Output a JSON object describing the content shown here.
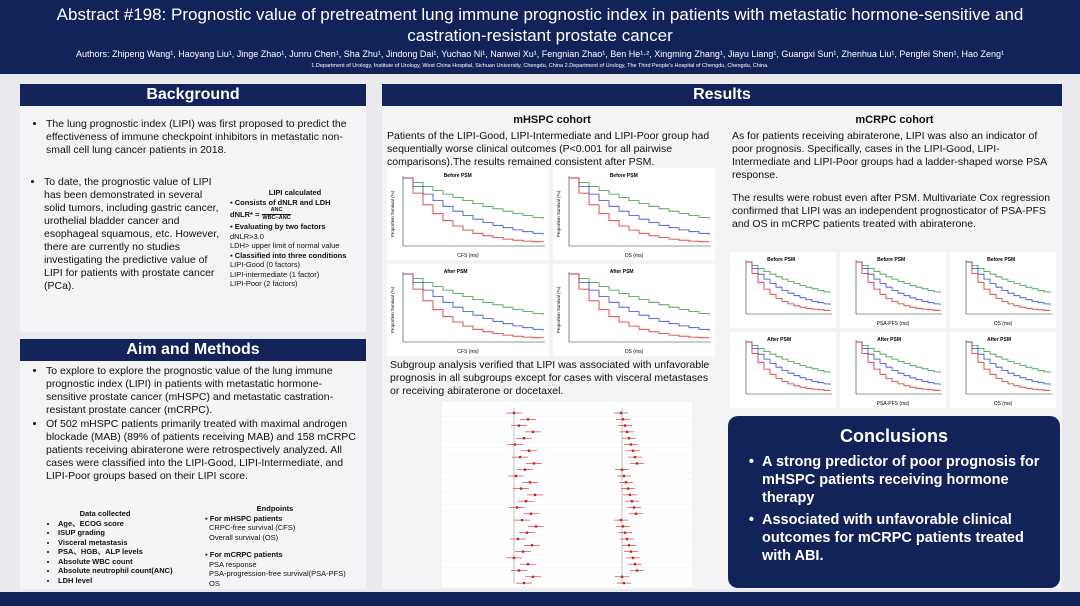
{
  "header": {
    "title": "Abstract #198: Prognostic value of pretreatment lung immune prognostic index in patients with metastatic hormone-sensitive and castration-resistant prostate cancer",
    "authors": "Authors: Zhipeng Wang¹, Haoyang Liu¹, Jinge Zhao¹, Junru Chen¹, Sha Zhu¹, Jindong Dai¹, Yuchao Ni¹, Nanwei Xu¹, Fengnian Zhao¹, Ben He¹·², Xingming Zhang¹, Jiayu Liang¹, Guangxi Sun¹, Zhenhua Liu¹, Pengfei Shen¹, Hao Zeng¹",
    "affiliations": "1.Department of Urology, Institute of Urology, West China Hospital, Sichuan University, Chengdu, China   2.Department of Urology, The Third People's Hospital of Chengdu, Chengdu, China."
  },
  "background": {
    "heading": "Background",
    "bullets": [
      "The lung prognostic index (LIPI) was first proposed to predict the effectiveness of immune checkpoint inhibitors in metastatic non-small cell lung cancer patients in 2018.",
      "To date, the prognostic value of LIPI has been demonstrated in several solid tumors, including gastric cancer, urothelial bladder cancer and esophageal squamous, etc. However, there are currently no studies investigating the predictive value of LIPI for patients with prostate cancer (PCa)."
    ],
    "lipi_box": {
      "title": "LIPI calculated",
      "item1": "Consists of dNLR and LDH",
      "formula_left": "dNLR* =",
      "formula_num": "ANC",
      "formula_den": "WBC−ANC",
      "item2": "Evaluating by two factors",
      "factor1": "dNLR>3.0",
      "factor2": "LDH> upper limit of normal value",
      "item3": "Classified into three conditions",
      "cond1": "LIPI-Good (0 factors)",
      "cond2": "LIPI-intermediate (1 factor)",
      "cond3": "LIPI-Poor (2 factors)"
    }
  },
  "aim_methods": {
    "heading": "Aim and Methods",
    "bullets": [
      "To explore to explore the prognostic value of the lung immune prognostic index (LIPI) in patients with metastatic hormone-sensitive prostate cancer (mHSPC) and metastatic castration-resistant prostate cancer (mCRPC).",
      "Of 502 mHSPC patients primarily treated with maximal androgen blockade (MAB) (89% of patients receiving MAB) and 158 mCRPC patients receiving abiraterone were retrospectively analyzed. All cases were classified into the LIPI-Good, LIPI-Intermediate, and LIPI-Poor groups based on their LIPI score."
    ],
    "data_collected": {
      "title": "Data collected",
      "items": [
        "Age、ECOG score",
        "ISUP grading",
        "Visceral metastasis",
        "PSA、HGB、ALP levels",
        "Absolute WBC count",
        "Absolute neutrophil count(ANC)",
        "LDH level"
      ]
    },
    "endpoints": {
      "title": "Endpoints",
      "mhspc_title": "For mHSPC patients",
      "mhspc_items": [
        "CRPC-free survival (CFS)",
        "Overall survival (OS)"
      ],
      "mcrpc_title": "For mCRPC patients",
      "mcrpc_items": [
        "PSA response",
        "PSA-progression-free survival(PSA-PFS)",
        "OS"
      ]
    }
  },
  "results": {
    "heading": "Results",
    "mhspc": {
      "heading": "mHSPC cohort",
      "text": "Patients of the LIPI-Good, LIPI-Intermediate and LIPI-Poor group had sequentially worse clinical outcomes (P<0.001 for all pairwise comparisons).The results remained consistent after PSM.",
      "panels": [
        {
          "label": "Before PSM",
          "xlabel": "CFS (ms)"
        },
        {
          "label": "Before PSM",
          "xlabel": "OS (ms)"
        },
        {
          "label": "After PSM",
          "xlabel": "CFS (ms)"
        },
        {
          "label": "After PSM",
          "xlabel": "OS (ms)"
        }
      ],
      "ylabel": "Proportion Survival (%)",
      "subgroup_text": "Subgroup analysis verified that LIPI was associated with unfavorable prognosis in all subgroups except for cases with visceral metastases or receiving abiraterone or docetaxel."
    },
    "mcrpc": {
      "heading": "mCRPC cohort",
      "text1": "As for patients receiving abiraterone, LIPI was also an indicator of poor prognosis. Specifically, cases in the LIPI-Good, LIPI-Intermediate and LIPI-Poor groups had a ladder-shaped worse PSA response.",
      "text2": "The results were robust even after PSM. Multivariate Cox regression confirmed that LIPI was an independent prognosticator of PSA-PFS and OS in mCRPC patients treated with abiraterone.",
      "panels": [
        {
          "label": "Before PSM",
          "xlabel": ""
        },
        {
          "label": "Before PSM",
          "xlabel": "PSA-PFS (ms)"
        },
        {
          "label": "Before PSM",
          "xlabel": "OS (ms)"
        },
        {
          "label": "After PSM",
          "xlabel": ""
        },
        {
          "label": "After PSM",
          "xlabel": "PSA-PFS (ms)"
        },
        {
          "label": "After PSM",
          "xlabel": "OS (ms)"
        }
      ]
    }
  },
  "conclusions": {
    "heading": "Conclusions",
    "bullets": [
      "A strong predictor of poor prognosis for mHSPC patients receiving hormone therapy",
      "Associated with unfavorable clinical outcomes for mCRPC patients treated with ABI."
    ]
  }
}
